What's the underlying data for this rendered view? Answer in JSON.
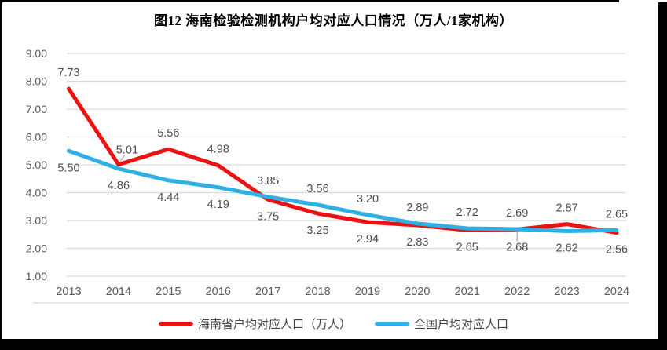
{
  "title": "图12  海南检验检测机构户均对应人口情况（万人/1家机构）",
  "colors": {
    "hainan_line": "#ee1111",
    "national_line": "#2fb0e4",
    "gridline": "#d9d9d9",
    "tick_text": "#595959",
    "data_label_text": "#4d4d4d",
    "leader_line": "#a6a6a6",
    "frame": "#000000"
  },
  "chart_data": {
    "type": "line",
    "title": "图12  海南检验检测机构户均对应人口情况（万人/1家机构）",
    "xlabel": "",
    "ylabel": "",
    "categories": [
      "2013",
      "2014",
      "2015",
      "2016",
      "2017",
      "2018",
      "2019",
      "2020",
      "2021",
      "2022",
      "2023",
      "2024"
    ],
    "series": [
      {
        "name": "海南省户均对应人口（万人）",
        "color": "#ee1111",
        "values": [
          7.73,
          5.01,
          5.56,
          4.98,
          3.75,
          3.25,
          2.94,
          2.83,
          2.65,
          2.68,
          2.87,
          2.56
        ],
        "label_pos": [
          "above",
          "above_leader",
          "above",
          "above",
          "below",
          "below",
          "below",
          "below",
          "below",
          "below_leader",
          "above",
          "below"
        ]
      },
      {
        "name": "全国户均对应人口",
        "color": "#2fb0e4",
        "values": [
          5.5,
          4.86,
          4.44,
          4.19,
          3.85,
          3.56,
          3.2,
          2.89,
          2.72,
          2.69,
          2.62,
          2.65
        ],
        "label_pos": [
          "below",
          "below",
          "below",
          "below",
          "above",
          "above",
          "above",
          "above",
          "above",
          "above",
          "below",
          "above"
        ]
      }
    ],
    "ylim": [
      1,
      9
    ],
    "y_ticks": [
      "9.00",
      "8.00",
      "7.00",
      "6.00",
      "5.00",
      "4.00",
      "3.00",
      "2.00",
      "1.00"
    ],
    "grid": true,
    "legend_position": "bottom"
  },
  "legend": {
    "items": [
      {
        "label": "海南省户均对应人口（万人）",
        "color": "#ee1111"
      },
      {
        "label": "全国户均对应人口",
        "color": "#2fb0e4"
      }
    ]
  }
}
